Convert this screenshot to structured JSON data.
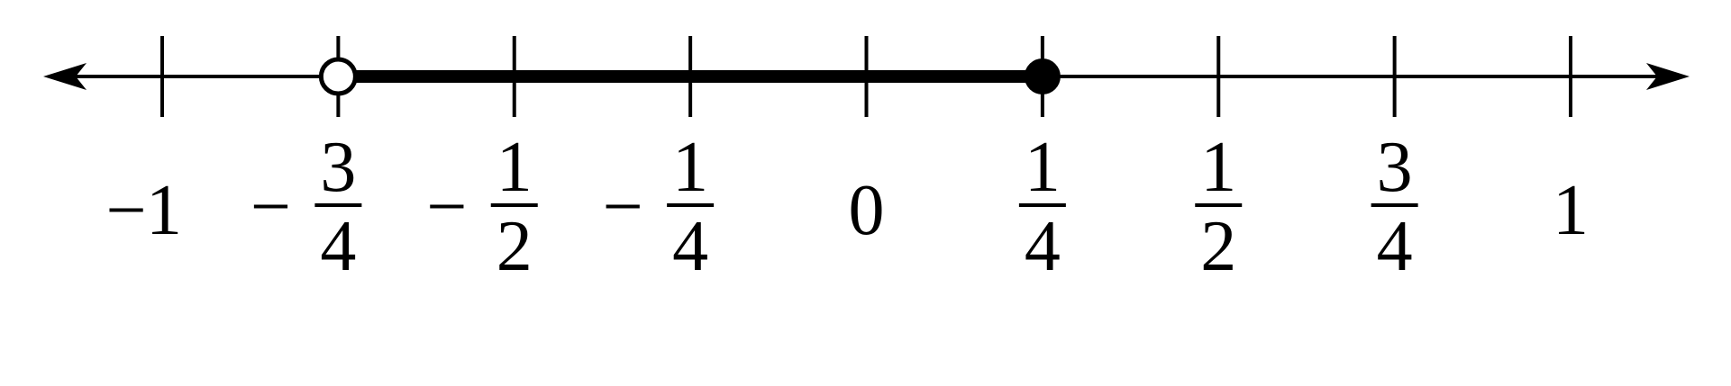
{
  "number_line": {
    "min": -1,
    "max": 1,
    "ticks": [
      {
        "value": -1,
        "sign": "−",
        "whole": "1",
        "num": "",
        "den": ""
      },
      {
        "value": -0.75,
        "sign": "−",
        "whole": "",
        "num": "3",
        "den": "4"
      },
      {
        "value": -0.5,
        "sign": "−",
        "whole": "",
        "num": "1",
        "den": "2"
      },
      {
        "value": -0.25,
        "sign": "−",
        "whole": "",
        "num": "1",
        "den": "4"
      },
      {
        "value": 0,
        "sign": "",
        "whole": "0",
        "num": "",
        "den": ""
      },
      {
        "value": 0.25,
        "sign": "",
        "whole": "",
        "num": "1",
        "den": "4"
      },
      {
        "value": 0.5,
        "sign": "",
        "whole": "",
        "num": "1",
        "den": "2"
      },
      {
        "value": 0.75,
        "sign": "",
        "whole": "",
        "num": "3",
        "den": "4"
      },
      {
        "value": 1,
        "sign": "",
        "whole": "1",
        "num": "",
        "den": ""
      }
    ],
    "interval": {
      "start": -0.75,
      "end": 0.25,
      "start_closed": false,
      "end_closed": true
    },
    "arrows": {
      "left": true,
      "right": true
    }
  }
}
